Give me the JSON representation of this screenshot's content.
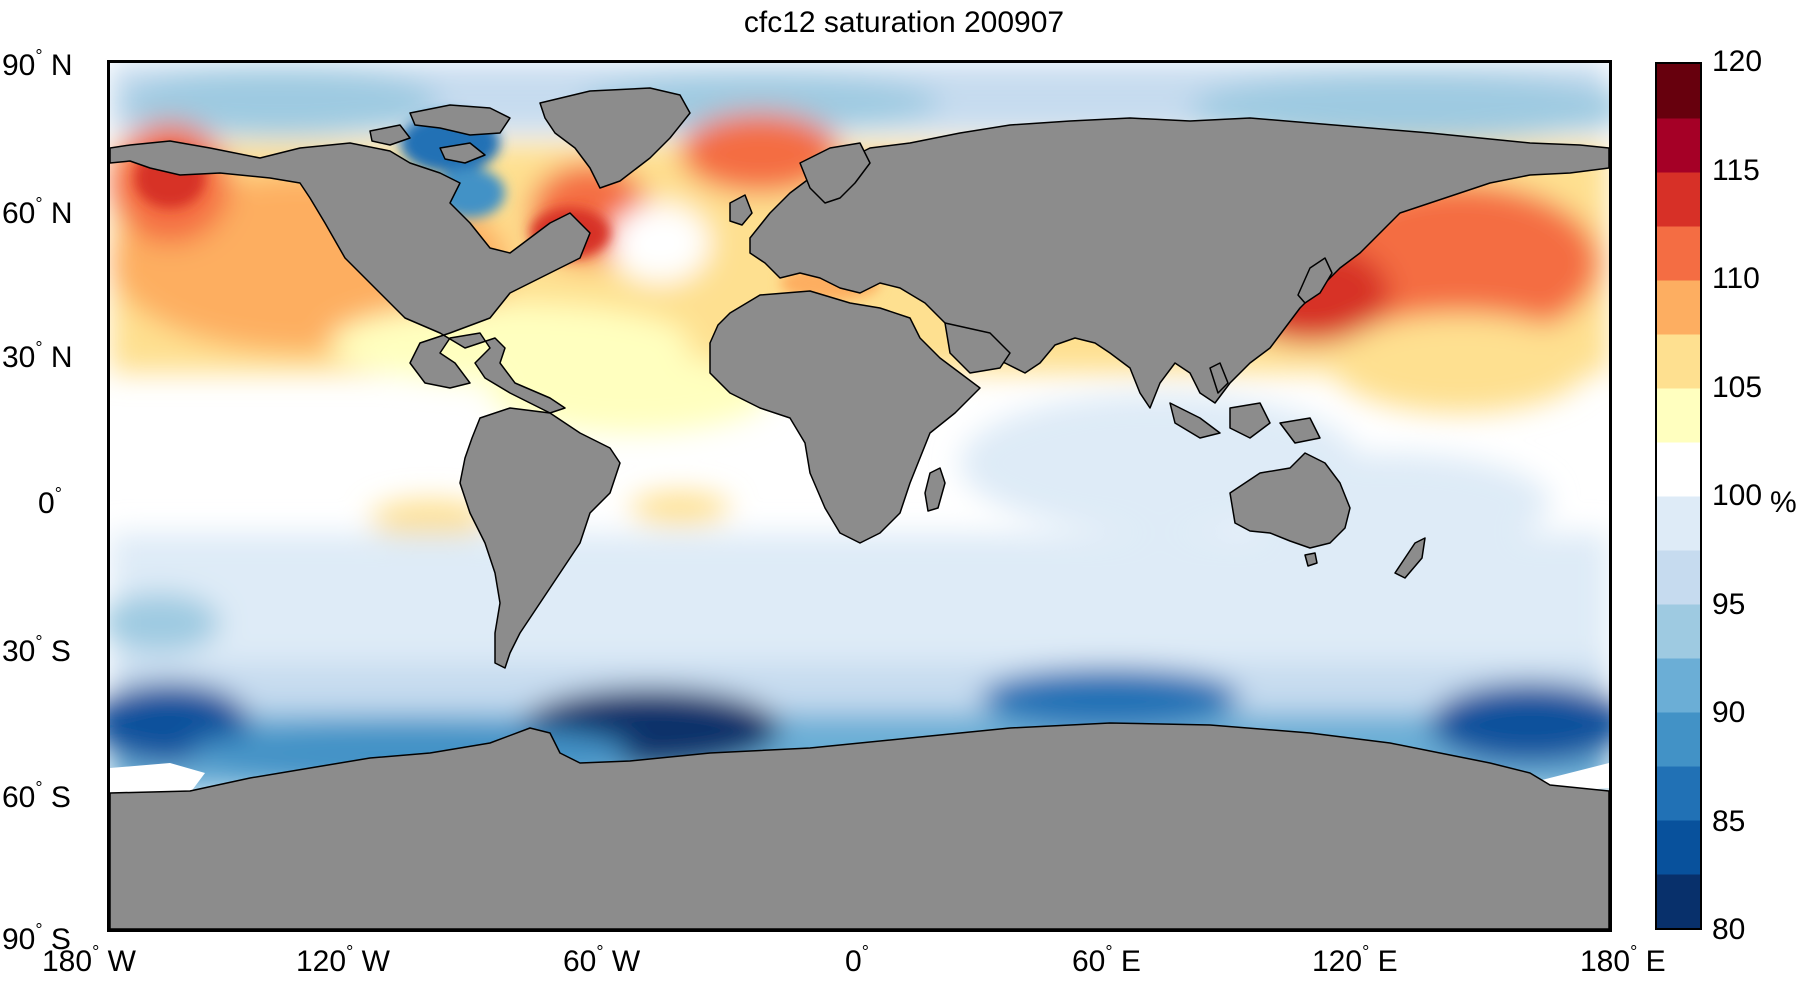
{
  "title": "cfc12 saturation 200907",
  "lat_labels": [
    {
      "deg": "90",
      "hemi": "N"
    },
    {
      "deg": "60",
      "hemi": "N"
    },
    {
      "deg": "30",
      "hemi": "N"
    },
    {
      "deg": "0",
      "hemi": ""
    },
    {
      "deg": "30",
      "hemi": "S"
    },
    {
      "deg": "60",
      "hemi": "S"
    },
    {
      "deg": "90",
      "hemi": "S"
    }
  ],
  "lon_labels": [
    {
      "deg": "180",
      "hemi": "W"
    },
    {
      "deg": "120",
      "hemi": "W"
    },
    {
      "deg": "60",
      "hemi": "W"
    },
    {
      "deg": "0",
      "hemi": ""
    },
    {
      "deg": "60",
      "hemi": "E"
    },
    {
      "deg": "120",
      "hemi": "E"
    },
    {
      "deg": "180",
      "hemi": "E"
    }
  ],
  "degree_symbol": "°",
  "colorbar": {
    "ticks": [
      "120",
      "115",
      "110",
      "105",
      "100",
      "95",
      "90",
      "85",
      "80"
    ],
    "unit": "%",
    "min": 80,
    "max": 120,
    "colors": [
      "#08306b",
      "#08519c",
      "#2171b5",
      "#4292c6",
      "#6baed6",
      "#9ecae1",
      "#c6dbef",
      "#deebf7",
      "#ffffff",
      "#ffffbf",
      "#fee090",
      "#fdae61",
      "#f46d43",
      "#d73027",
      "#a50026",
      "#67000d"
    ]
  },
  "colors": {
    "land": "#8c8c8c",
    "coast": "#000000",
    "ocean_neutral": "#ffffff"
  }
}
